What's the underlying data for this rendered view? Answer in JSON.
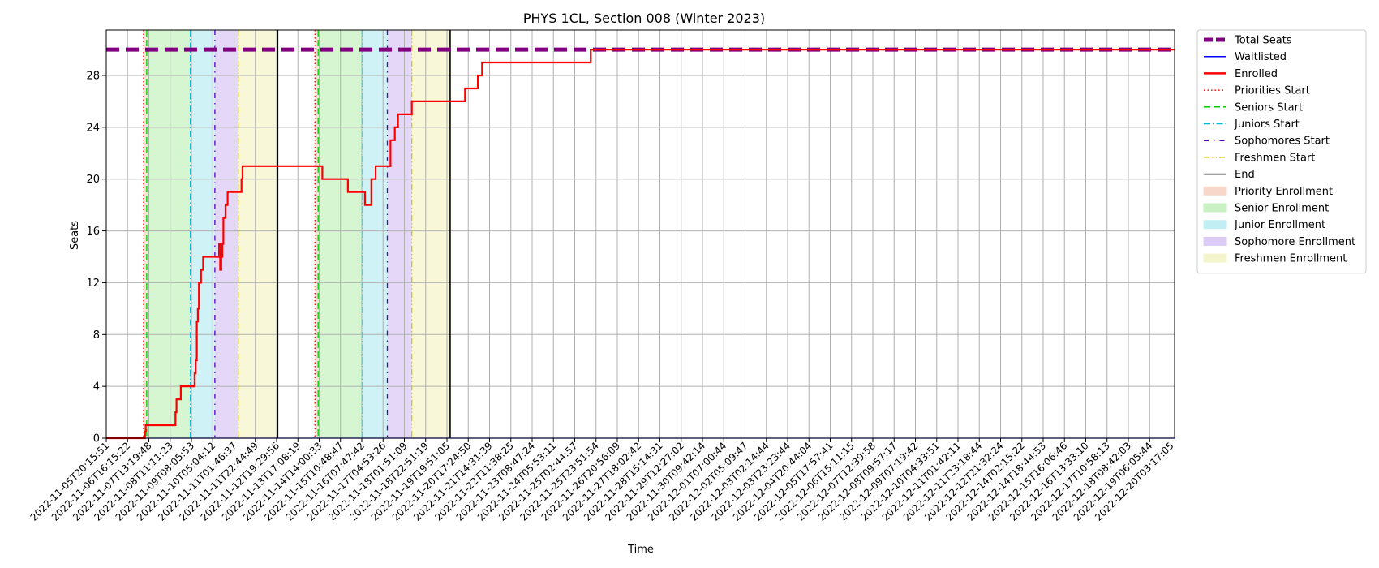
{
  "chart_data": {
    "type": "line",
    "title": "PHYS 1CL, Section 008 (Winter 2023)",
    "xlabel": "Time",
    "ylabel": "Seats",
    "ylim": [
      0,
      30
    ],
    "yticks": [
      0,
      4,
      8,
      12,
      16,
      20,
      24,
      28
    ],
    "grid": true,
    "legend_position": "outside-right-top",
    "x_tick_labels": [
      "2022-11-05T20:15:51",
      "2022-11-06T16:15:22",
      "2022-11-07T13:19:48",
      "2022-11-08T11:11:23",
      "2022-11-09T08:05:53",
      "2022-11-10T05:04:12",
      "2022-11-11T01:46:37",
      "2022-11-11T22:44:49",
      "2022-11-12T19:29:56",
      "2022-11-13T17:08:19",
      "2022-11-14T14:00:33",
      "2022-11-15T10:48:47",
      "2022-11-16T07:47:42",
      "2022-11-17T04:53:26",
      "2022-11-18T01:51:09",
      "2022-11-18T22:51:19",
      "2022-11-19T19:51:05",
      "2022-11-20T17:24:50",
      "2022-11-21T14:31:39",
      "2022-11-22T11:38:25",
      "2022-11-23T08:47:24",
      "2022-11-24T05:53:11",
      "2022-11-25T02:44:57",
      "2022-11-25T23:51:54",
      "2022-11-26T20:56:09",
      "2022-11-27T18:02:42",
      "2022-11-28T15:14:31",
      "2022-11-29T12:27:02",
      "2022-11-30T09:42:14",
      "2022-12-01T07:00:44",
      "2022-12-02T05:09:47",
      "2022-12-03T02:14:44",
      "2022-12-03T23:23:44",
      "2022-12-04T20:44:04",
      "2022-12-05T17:57:41",
      "2022-12-06T15:11:15",
      "2022-12-07T12:39:58",
      "2022-12-08T09:57:17",
      "2022-12-09T07:19:42",
      "2022-12-10T04:33:51",
      "2022-12-11T01:42:11",
      "2022-12-11T23:18:44",
      "2022-12-12T21:32:24",
      "2022-12-14T02:15:22",
      "2022-12-14T18:44:53",
      "2022-12-15T16:06:46",
      "2022-12-16T13:33:10",
      "2022-12-17T10:58:13",
      "2022-12-18T08:42:03",
      "2022-12-19T06:05:44",
      "2022-12-20T03:17:05"
    ],
    "x_range_tick_index": [
      0,
      50.2
    ],
    "series": [
      {
        "name": "Total Seats",
        "style": "dashed",
        "color": "#800080",
        "x_tick_index": [
          0,
          50.2
        ],
        "values": [
          30,
          30
        ]
      },
      {
        "name": "Waitlisted",
        "style": "solid",
        "color": "#0000ff",
        "x_tick_index": [
          0,
          50.2
        ],
        "values": [
          0,
          0
        ]
      },
      {
        "name": "Enrolled",
        "style": "step",
        "color": "#ff0000",
        "x_tick_index": [
          0,
          1.8,
          1.82,
          1.85,
          3.2,
          3.25,
          3.3,
          3.45,
          3.5,
          4.1,
          4.15,
          4.2,
          4.25,
          4.3,
          4.35,
          4.45,
          4.55,
          4.6,
          5.3,
          5.35,
          5.4,
          5.45,
          5.5,
          5.6,
          5.7,
          5.75,
          5.8,
          6.3,
          6.35,
          6.4,
          6.5,
          10.1,
          10.15,
          11.3,
          11.35,
          12.1,
          12.15,
          12.4,
          12.45,
          12.6,
          12.65,
          13.3,
          13.35,
          13.5,
          13.55,
          13.65,
          13.7,
          14.3,
          14.35,
          16.8,
          16.85,
          17.4,
          17.45,
          17.6,
          17.65,
          22.7,
          22.75,
          50.2
        ],
        "values": [
          0,
          0,
          0.5,
          1,
          1,
          2,
          3,
          3,
          4,
          4,
          5,
          6,
          9,
          10,
          12,
          13,
          14,
          14,
          15,
          13,
          14,
          15,
          17,
          18,
          19,
          19,
          19,
          19,
          20,
          21,
          21,
          21,
          20,
          20,
          19,
          19,
          18,
          18,
          20,
          20,
          21,
          21,
          23,
          23,
          24,
          24,
          25,
          25,
          26,
          26,
          27,
          27,
          28,
          28,
          29,
          29,
          30,
          30
        ]
      }
    ],
    "vertical_markers": [
      {
        "name": "Priorities Start",
        "style": "dotted",
        "color": "#ff0000",
        "x_tick_index": [
          1.75,
          9.8
        ]
      },
      {
        "name": "Seniors Start",
        "style": "dashed",
        "color": "#00cc00",
        "x_tick_index": [
          1.9,
          9.95
        ]
      },
      {
        "name": "Juniors Start",
        "style": "dashdot",
        "color": "#00bcd4",
        "x_tick_index": [
          3.95,
          12.05
        ]
      },
      {
        "name": "Sophomores Start",
        "style": "dashdot-sparse",
        "color": "#5500cc",
        "x_tick_index": [
          5.1,
          13.2
        ]
      },
      {
        "name": "Freshmen Start",
        "style": "dashdotdot",
        "color": "#d4c600",
        "x_tick_index": [
          6.2,
          14.35
        ]
      },
      {
        "name": "End",
        "style": "solid",
        "color": "#000000",
        "x_tick_index": [
          8.05,
          16.15
        ]
      }
    ],
    "shaded_regions": [
      {
        "name": "Priority Enrollment",
        "color": "#f4c7b4",
        "spans": [
          [
            1.75,
            1.9
          ],
          [
            9.8,
            9.95
          ]
        ]
      },
      {
        "name": "Senior Enrollment",
        "color": "#b4ecab",
        "spans": [
          [
            1.9,
            3.95
          ],
          [
            9.95,
            12.05
          ]
        ]
      },
      {
        "name": "Junior Enrollment",
        "color": "#a8e8ee",
        "spans": [
          [
            3.95,
            5.1
          ],
          [
            12.05,
            13.2
          ]
        ]
      },
      {
        "name": "Sophomore Enrollment",
        "color": "#cdb6f2",
        "spans": [
          [
            5.1,
            6.2
          ],
          [
            13.2,
            14.35
          ]
        ]
      },
      {
        "name": "Freshmen Enrollment",
        "color": "#f2f2b8",
        "spans": [
          [
            6.2,
            8.05
          ],
          [
            14.35,
            16.15
          ]
        ]
      }
    ],
    "legend": [
      {
        "label": "Total Seats",
        "kind": "line",
        "style": "dashed-thick",
        "color": "#800080"
      },
      {
        "label": "Waitlisted",
        "kind": "line",
        "style": "solid",
        "color": "#0000ff"
      },
      {
        "label": "Enrolled",
        "kind": "line",
        "style": "solid-thick",
        "color": "#ff0000"
      },
      {
        "label": "Priorities Start",
        "kind": "line",
        "style": "dotted",
        "color": "#ff0000"
      },
      {
        "label": "Seniors Start",
        "kind": "line",
        "style": "dashed",
        "color": "#00cc00"
      },
      {
        "label": "Juniors Start",
        "kind": "line",
        "style": "dashdot",
        "color": "#00bcd4"
      },
      {
        "label": "Sophomores Start",
        "kind": "line",
        "style": "dashdot-sparse",
        "color": "#5500cc"
      },
      {
        "label": "Freshmen Start",
        "kind": "line",
        "style": "dashdotdot",
        "color": "#d4c600"
      },
      {
        "label": "End",
        "kind": "line",
        "style": "solid",
        "color": "#000000"
      },
      {
        "label": "Priority Enrollment",
        "kind": "patch",
        "color": "#f4c7b4"
      },
      {
        "label": "Senior Enrollment",
        "kind": "patch",
        "color": "#b4ecab"
      },
      {
        "label": "Junior Enrollment",
        "kind": "patch",
        "color": "#a8e8ee"
      },
      {
        "label": "Sophomore Enrollment",
        "kind": "patch",
        "color": "#cdb6f2"
      },
      {
        "label": "Freshmen Enrollment",
        "kind": "patch",
        "color": "#f2f2b8"
      }
    ]
  }
}
